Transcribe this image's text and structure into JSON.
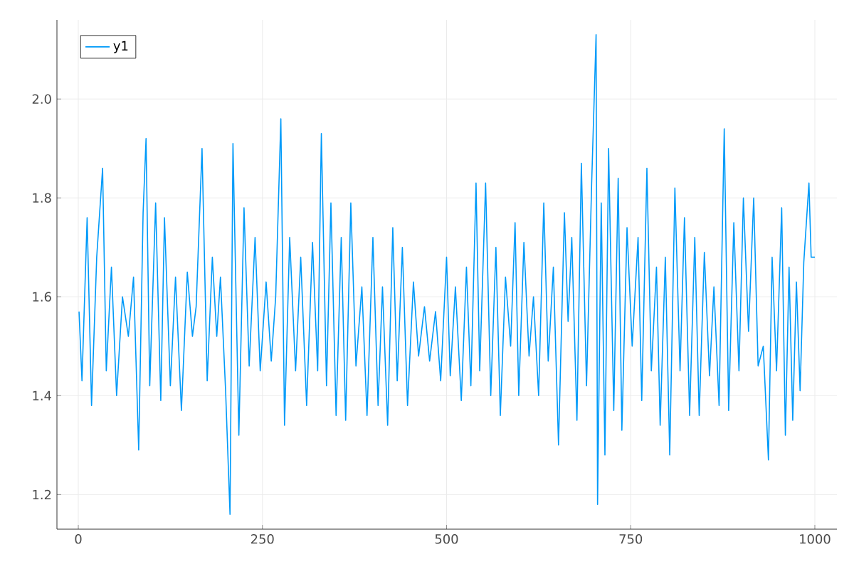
{
  "chart_data": {
    "type": "line",
    "x": [
      1,
      5,
      12,
      18,
      25,
      33,
      38,
      45,
      52,
      60,
      68,
      75,
      82,
      88,
      92,
      97,
      105,
      112,
      117,
      125,
      132,
      140,
      148,
      155,
      160,
      168,
      175,
      182,
      188,
      193,
      200,
      206,
      210,
      218,
      225,
      232,
      240,
      247,
      255,
      262,
      268,
      275,
      280,
      287,
      295,
      302,
      310,
      318,
      325,
      330,
      337,
      343,
      350,
      357,
      363,
      370,
      377,
      385,
      392,
      400,
      407,
      413,
      420,
      427,
      433,
      440,
      447,
      455,
      462,
      470,
      477,
      485,
      492,
      500,
      505,
      512,
      520,
      527,
      533,
      540,
      545,
      553,
      560,
      567,
      573,
      580,
      587,
      593,
      598,
      605,
      612,
      618,
      625,
      632,
      638,
      645,
      652,
      660,
      665,
      670,
      677,
      683,
      690,
      697,
      703,
      705,
      710,
      715,
      720,
      727,
      733,
      738,
      745,
      752,
      760,
      765,
      772,
      778,
      785,
      790,
      797,
      803,
      810,
      817,
      823,
      830,
      837,
      843,
      850,
      857,
      863,
      870,
      877,
      883,
      890,
      897,
      903,
      910,
      917,
      923,
      930,
      937,
      942,
      948,
      955,
      960,
      965,
      970,
      975,
      980,
      985,
      992,
      995,
      1000
    ],
    "series": [
      {
        "name": "y1",
        "color": "#009af9",
        "values": [
          1.57,
          1.43,
          1.76,
          1.38,
          1.68,
          1.86,
          1.45,
          1.66,
          1.4,
          1.6,
          1.52,
          1.64,
          1.29,
          1.77,
          1.92,
          1.42,
          1.79,
          1.39,
          1.76,
          1.42,
          1.64,
          1.37,
          1.65,
          1.52,
          1.58,
          1.9,
          1.43,
          1.68,
          1.52,
          1.64,
          1.41,
          1.16,
          1.91,
          1.32,
          1.78,
          1.46,
          1.72,
          1.45,
          1.63,
          1.47,
          1.6,
          1.96,
          1.34,
          1.72,
          1.45,
          1.68,
          1.38,
          1.71,
          1.45,
          1.93,
          1.42,
          1.79,
          1.36,
          1.72,
          1.35,
          1.79,
          1.46,
          1.62,
          1.36,
          1.72,
          1.38,
          1.62,
          1.34,
          1.74,
          1.43,
          1.7,
          1.38,
          1.63,
          1.48,
          1.58,
          1.47,
          1.57,
          1.43,
          1.68,
          1.44,
          1.62,
          1.39,
          1.66,
          1.42,
          1.83,
          1.45,
          1.83,
          1.4,
          1.7,
          1.36,
          1.64,
          1.5,
          1.75,
          1.4,
          1.71,
          1.48,
          1.6,
          1.4,
          1.79,
          1.47,
          1.66,
          1.3,
          1.77,
          1.55,
          1.72,
          1.35,
          1.87,
          1.42,
          1.83,
          2.13,
          1.18,
          1.79,
          1.28,
          1.9,
          1.37,
          1.84,
          1.33,
          1.74,
          1.5,
          1.72,
          1.39,
          1.86,
          1.45,
          1.66,
          1.34,
          1.68,
          1.28,
          1.82,
          1.45,
          1.76,
          1.36,
          1.72,
          1.36,
          1.69,
          1.44,
          1.62,
          1.38,
          1.94,
          1.37,
          1.75,
          1.45,
          1.8,
          1.53,
          1.8,
          1.46,
          1.5,
          1.27,
          1.68,
          1.45,
          1.78,
          1.32,
          1.66,
          1.35,
          1.63,
          1.41,
          1.67,
          1.83,
          1.68,
          1.68
        ]
      }
    ],
    "xlim": [
      -29,
      1030
    ],
    "ylim": [
      1.13,
      2.16
    ],
    "xticks": [
      0,
      250,
      500,
      750,
      1000
    ],
    "yticks": [
      1.2,
      1.4,
      1.6,
      1.8,
      {
        "value": 2.0,
        "label": "2.0"
      }
    ],
    "grid": true,
    "legend": "top left"
  }
}
